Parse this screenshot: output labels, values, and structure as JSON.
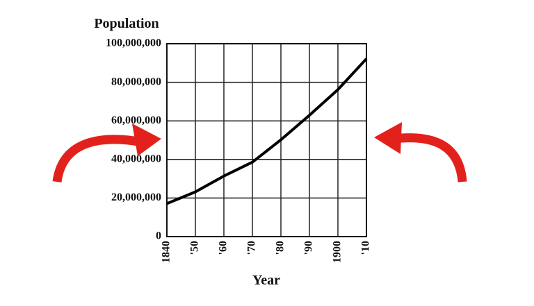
{
  "chart_data": {
    "type": "line",
    "y_label": "Population",
    "x_label": "Year",
    "x": [
      1840,
      1850,
      1860,
      1870,
      1880,
      1890,
      1900,
      1910
    ],
    "series": [
      {
        "color": "#000000",
        "values": [
          17100000,
          23200000,
          31400000,
          38600000,
          50200000,
          62900000,
          76200000,
          92200000
        ]
      }
    ],
    "xlim": [
      1840,
      1910
    ],
    "xticks": [
      1840,
      {
        "value": 1850,
        "label": "'50"
      },
      {
        "value": 1860,
        "label": "'60"
      },
      {
        "value": 1870,
        "label": "'70"
      },
      {
        "value": 1880,
        "label": "'80"
      },
      {
        "value": 1890,
        "label": "'90"
      },
      1900,
      {
        "value": 1910,
        "label": "'10"
      }
    ],
    "ylim": [
      0,
      100000000
    ],
    "yticks": [
      0,
      {
        "value": 20000000,
        "label": "20,000,000"
      },
      {
        "value": 40000000,
        "label": "40,000,000"
      },
      {
        "value": 60000000,
        "label": "60,000,000"
      },
      {
        "value": 80000000,
        "label": "80,000,000"
      },
      {
        "value": 100000000,
        "label": "100,000,000"
      }
    ],
    "grid": true
  }
}
